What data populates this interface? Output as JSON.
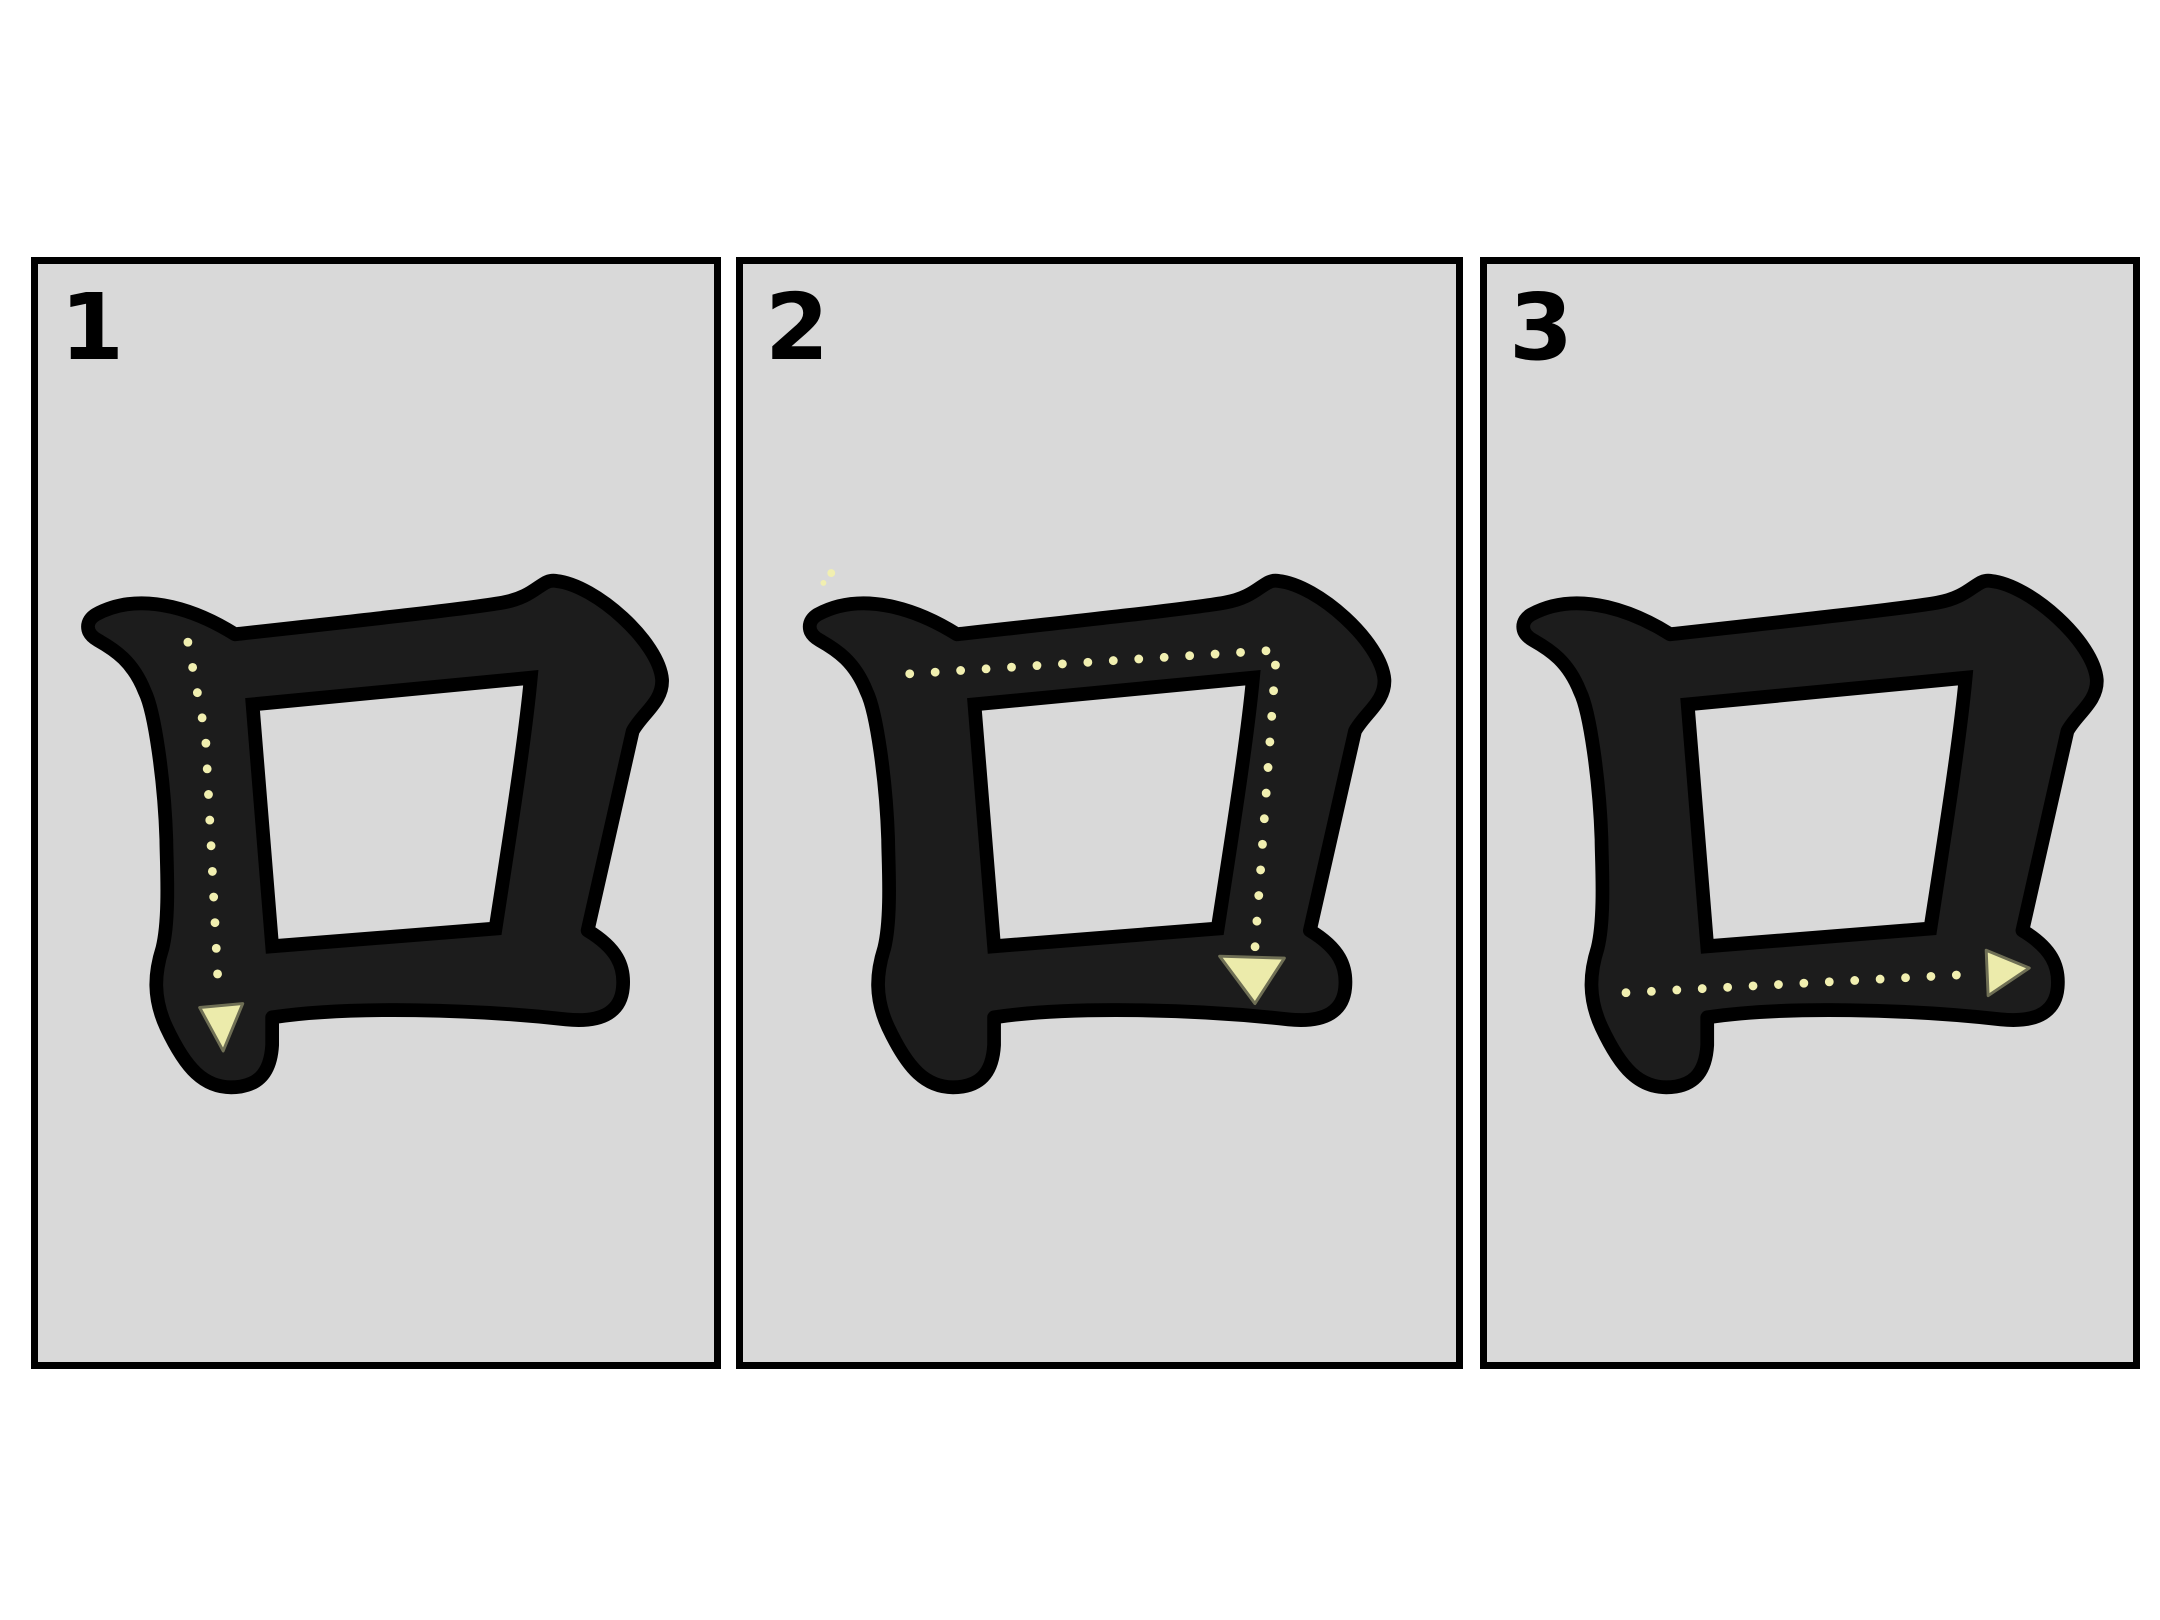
{
  "colors": {
    "page_background": "#ffffff",
    "panel_background": "#d9d9d9",
    "panel_border": "#000000",
    "glyph_fill": "#1c1c1c",
    "glyph_outline": "#000000",
    "counter_fill": "#d9d9d9",
    "guide_dots": "#f1efb0",
    "arrowhead": "#ecebab"
  },
  "character": "口",
  "panels": [
    {
      "step_number": "1",
      "stroke_direction": "down",
      "icon": "stroke-1-arrow-icon"
    },
    {
      "step_number": "2",
      "stroke_direction": "right-then-down",
      "icon": "stroke-2-arrow-icon"
    },
    {
      "step_number": "3",
      "stroke_direction": "right",
      "icon": "stroke-3-arrow-icon"
    }
  ]
}
